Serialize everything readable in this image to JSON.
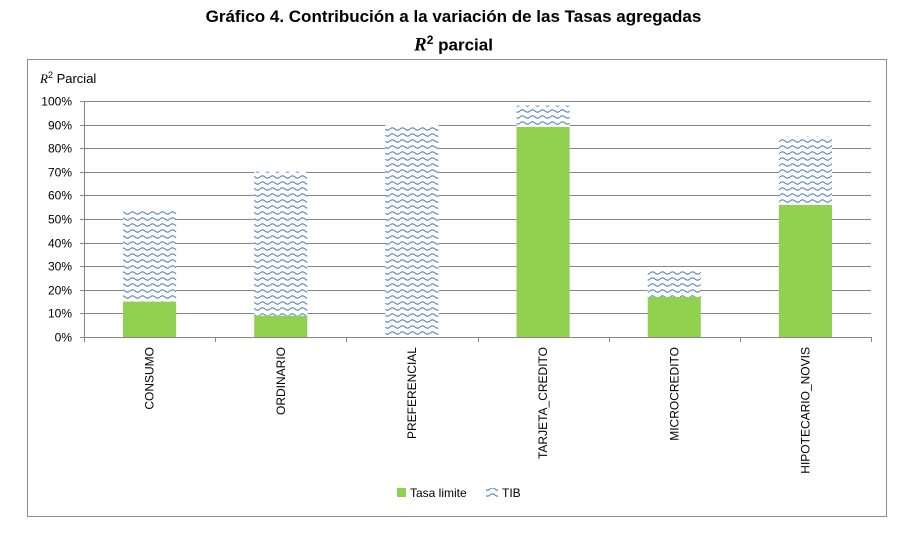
{
  "title": {
    "line1": "Gráfico 4. Contribución a la variación de las Tasas agregadas",
    "math_symbol": "R",
    "math_exponent": "2",
    "line2_suffix": " parcial"
  },
  "chart_data": {
    "type": "bar",
    "stacked": true,
    "ylabel_symbol": "R",
    "ylabel_exponent": "2",
    "ylabel_text": " Parcial",
    "ylim": [
      0,
      100
    ],
    "yticks": [
      0,
      10,
      20,
      30,
      40,
      50,
      60,
      70,
      80,
      90,
      100
    ],
    "ytick_labels": [
      "0%",
      "10%",
      "20%",
      "30%",
      "40%",
      "50%",
      "60%",
      "70%",
      "80%",
      "90%",
      "100%"
    ],
    "categories": [
      "CONSUMO",
      "ORDINARIO",
      "PREFERENCIAL",
      "TARJETA_CREDITO",
      "MICROCREDITO",
      "HIPOTECARIO_NOVIS"
    ],
    "series": [
      {
        "name": "Tasa limite",
        "values": [
          15,
          9,
          0,
          89,
          17,
          56
        ]
      },
      {
        "name": "TIB",
        "values": [
          39,
          61,
          90,
          9,
          11,
          29
        ]
      }
    ],
    "legend_position": "bottom",
    "colors": {
      "tasa_limite": "#92d050",
      "tib_pattern": "#4f81bd",
      "grid": "#868686"
    }
  }
}
